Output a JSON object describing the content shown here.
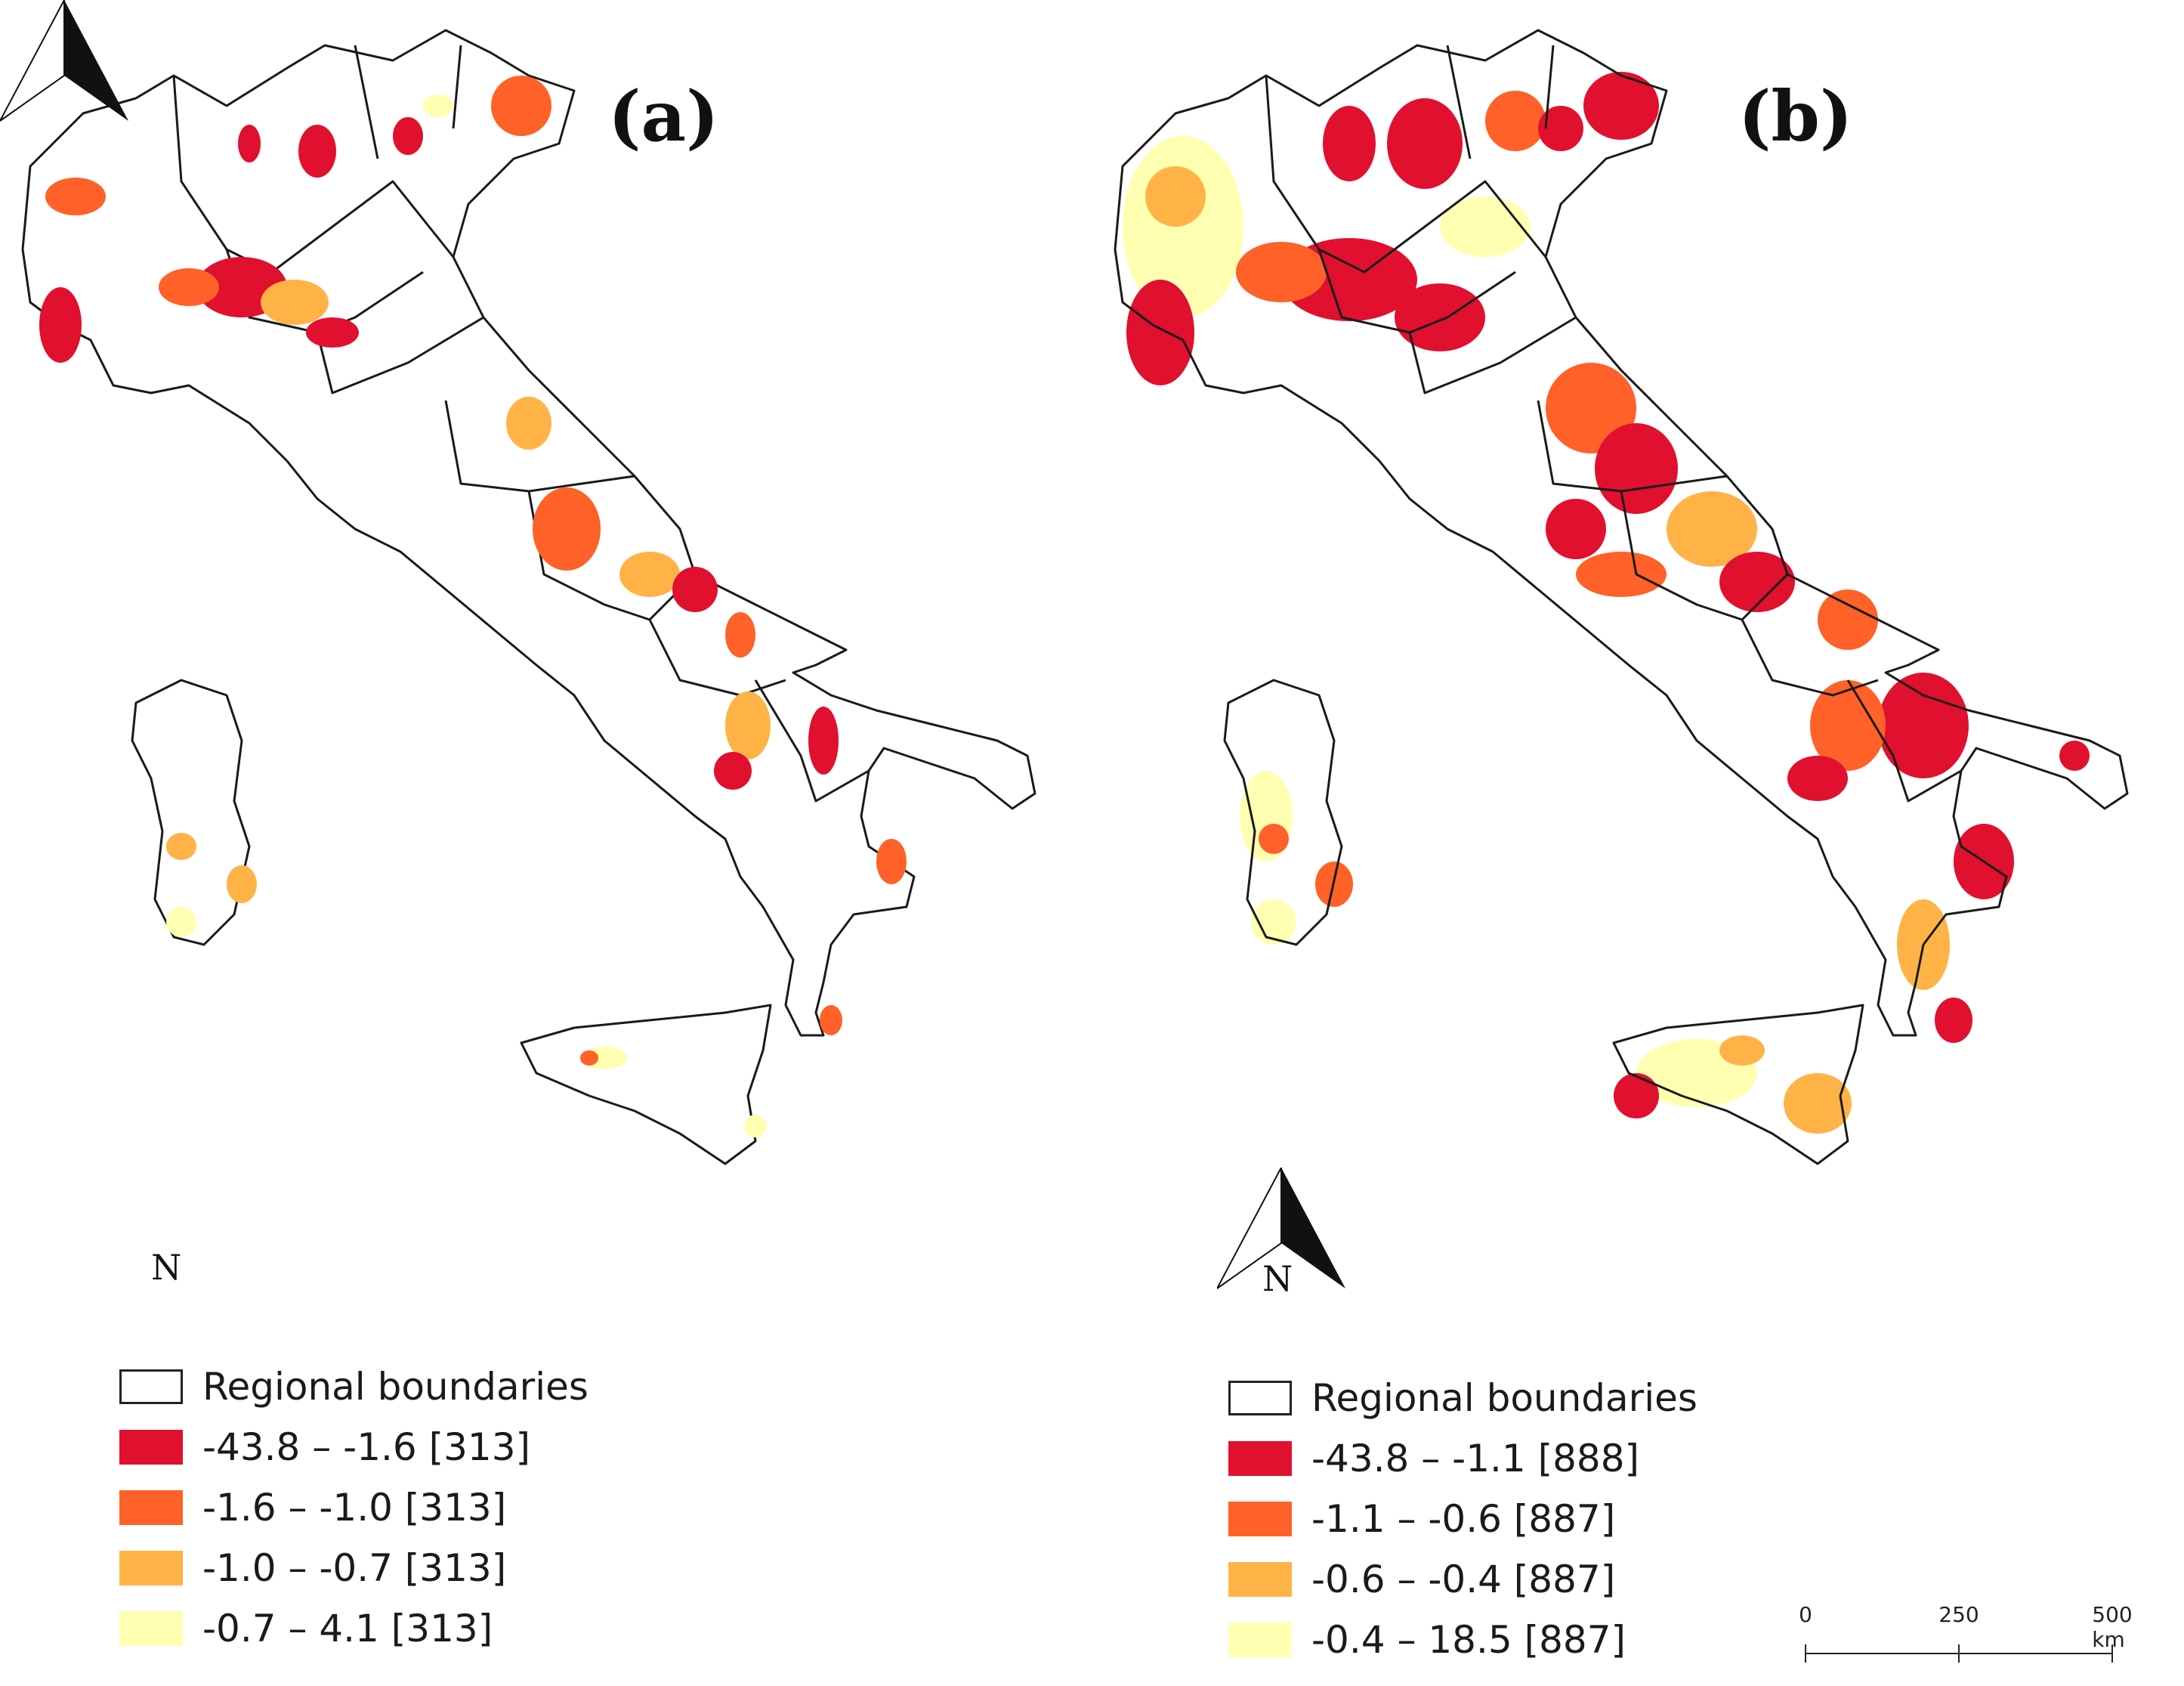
{
  "panels": [
    {
      "label": "(a)",
      "north_letter": "N",
      "legend": [
        {
          "label": "Regional boundaries",
          "color": "#ffffff",
          "type": "outline"
        },
        {
          "label": "-43.8 – -1.6 [313]",
          "color": "#e0102e",
          "type": "fill"
        },
        {
          "label": "-1.6 – -1.0 [313]",
          "color": "#ff6128",
          "type": "fill"
        },
        {
          "label": "-1.0 – -0.7 [313]",
          "color": "#ffb347",
          "type": "fill"
        },
        {
          "label": "-0.7 – 4.1 [313]",
          "color": "#ffffb2",
          "type": "fill"
        }
      ]
    },
    {
      "label": "(b)",
      "north_letter": "N",
      "legend": [
        {
          "label": "Regional boundaries",
          "color": "#ffffff",
          "type": "outline"
        },
        {
          "label": "-43.8 – -1.1 [888]",
          "color": "#e0102e",
          "type": "fill"
        },
        {
          "label": "-1.1 – -0.6 [887]",
          "color": "#ff6128",
          "type": "fill"
        },
        {
          "label": "-0.6 – -0.4 [887]",
          "color": "#ffb347",
          "type": "fill"
        },
        {
          "label": "-0.4 – 18.5 [887]",
          "color": "#ffffb2",
          "type": "fill"
        }
      ]
    }
  ],
  "scale_bar": {
    "labels": [
      "0",
      "250",
      "500 km"
    ]
  }
}
